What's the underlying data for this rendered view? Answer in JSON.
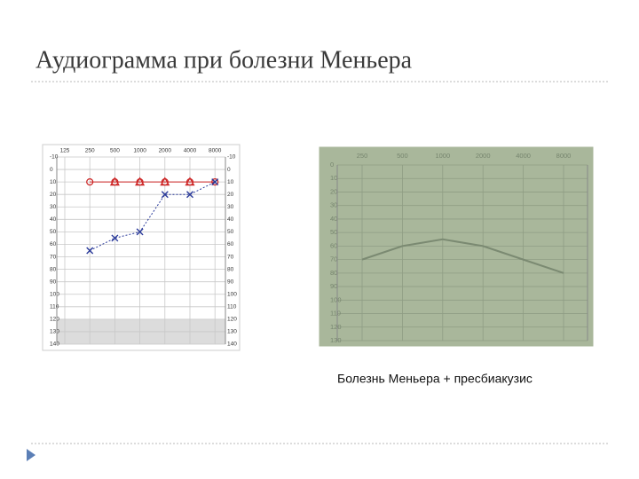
{
  "title": "Аудиограмма при болезни Меньера",
  "caption": "Болезнь Меньера + пресбиакузис",
  "chart_data": [
    {
      "type": "line",
      "categories": [
        "125",
        "250",
        "500",
        "1000",
        "2000",
        "4000",
        "8000"
      ],
      "ylim": [
        -10,
        140
      ],
      "y_inverted": true,
      "yticks": [
        -10,
        0,
        10,
        20,
        30,
        40,
        50,
        60,
        70,
        80,
        90,
        100,
        110,
        120,
        130,
        140
      ],
      "shaded_range": [
        120,
        140
      ],
      "grid": true,
      "series": [
        {
          "color": "#cc2222",
          "marker": "circle",
          "linestyle": "solid",
          "values": [
            null,
            10,
            10,
            10,
            10,
            10,
            10
          ]
        },
        {
          "color": "#cc2222",
          "marker": "triangle",
          "linestyle": "none",
          "values": [
            null,
            null,
            10,
            10,
            10,
            10,
            null
          ]
        },
        {
          "color": "#2a3a9a",
          "marker": "x",
          "linestyle": "dashed",
          "values": [
            null,
            65,
            55,
            50,
            20,
            20,
            10
          ]
        }
      ]
    },
    {
      "type": "line",
      "categories": [
        "250",
        "500",
        "1000",
        "2000",
        "4000",
        "8000"
      ],
      "ylim": [
        0,
        130
      ],
      "y_inverted": true,
      "yticks": [
        0,
        10,
        20,
        30,
        40,
        50,
        60,
        70,
        80,
        90,
        100,
        110,
        120,
        130
      ],
      "grid": true,
      "series": [
        {
          "color": "#7b8a72",
          "marker": "none",
          "linestyle": "solid",
          "values": [
            70,
            60,
            55,
            60,
            70,
            80
          ]
        }
      ]
    }
  ]
}
